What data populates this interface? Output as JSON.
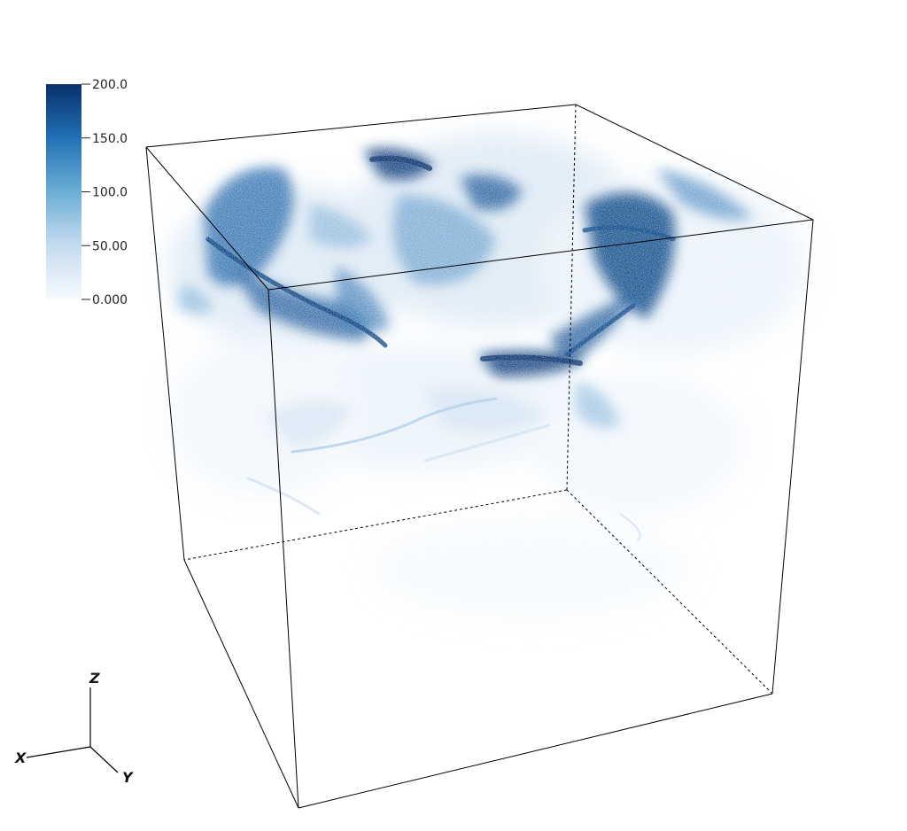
{
  "colorbar": {
    "ticks": [
      {
        "value": 200,
        "label": "200.0"
      },
      {
        "value": 150,
        "label": "150.0"
      },
      {
        "value": 100,
        "label": "100.0"
      },
      {
        "value": 50,
        "label": "50.00"
      },
      {
        "value": 0,
        "label": "0.000"
      }
    ],
    "range": [
      0,
      200
    ],
    "colors": {
      "low": "#ffffff",
      "mid": "#9ecae1",
      "high": "#08306b"
    }
  },
  "orientation_axes": {
    "x_label": "X",
    "y_label": "Y",
    "z_label": "Z"
  },
  "volume": {
    "colormap": "Blues",
    "bounding_box_color": "#000000"
  }
}
